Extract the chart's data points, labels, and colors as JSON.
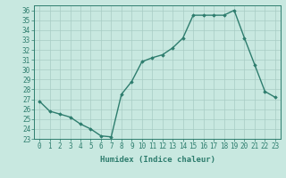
{
  "x": [
    0,
    1,
    2,
    3,
    4,
    5,
    6,
    7,
    8,
    9,
    10,
    11,
    12,
    13,
    14,
    15,
    16,
    17,
    18,
    19,
    20,
    21,
    22,
    23
  ],
  "y": [
    26.8,
    25.8,
    25.5,
    25.2,
    24.5,
    24.0,
    23.3,
    23.2,
    27.5,
    28.8,
    30.8,
    31.2,
    31.5,
    32.2,
    33.2,
    35.5,
    35.5,
    35.5,
    35.5,
    36.0,
    33.2,
    30.5,
    27.8,
    27.2
  ],
  "line_color": "#2e7d6e",
  "marker": "D",
  "marker_size": 1.8,
  "bg_color": "#c8e8e0",
  "grid_color": "#a8ccc4",
  "xlabel": "Humidex (Indice chaleur)",
  "xlim": [
    -0.5,
    23.5
  ],
  "ylim": [
    23,
    36.5
  ],
  "yticks": [
    23,
    24,
    25,
    26,
    27,
    28,
    29,
    30,
    31,
    32,
    33,
    34,
    35,
    36
  ],
  "xticks": [
    0,
    1,
    2,
    3,
    4,
    5,
    6,
    7,
    8,
    9,
    10,
    11,
    12,
    13,
    14,
    15,
    16,
    17,
    18,
    19,
    20,
    21,
    22,
    23
  ],
  "tick_label_fontsize": 5.5,
  "xlabel_fontsize": 6.5,
  "line_width": 1.0
}
